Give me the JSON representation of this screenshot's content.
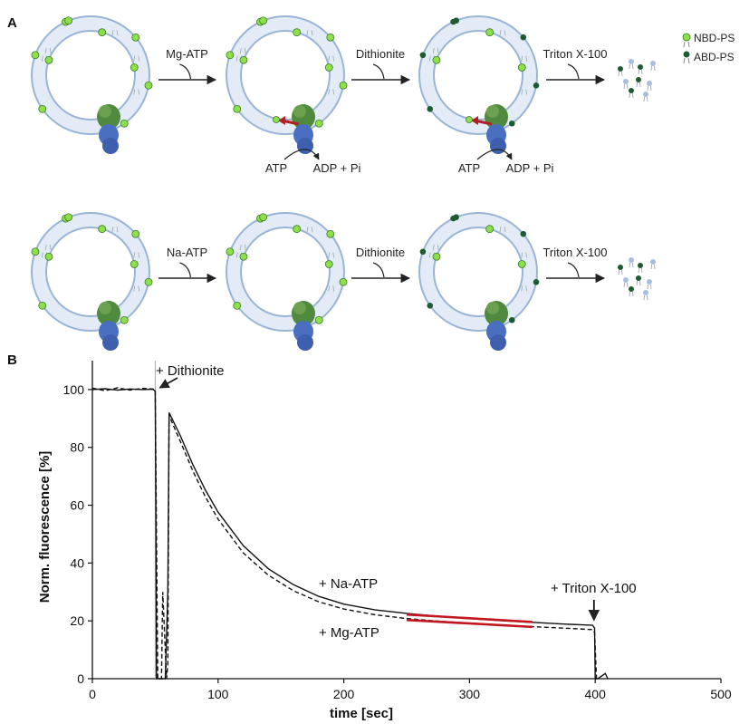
{
  "panel_a": {
    "label": "A",
    "row1": {
      "steps": [
        "Mg-ATP",
        "Dithionite",
        "Triton X-100"
      ]
    },
    "row2": {
      "steps": [
        "Na-ATP",
        "Dithionite",
        "Triton X-100"
      ]
    },
    "atp_text": "ATP",
    "adp_text": "ADP + Pi",
    "legend": [
      {
        "label": "NBD-PS",
        "color": "#8ee04a"
      },
      {
        "label": "ABD-PS",
        "color": "#1e5a32"
      }
    ],
    "colors": {
      "membrane": "#9ab4d6",
      "membrane_fill": "#e3ecf6",
      "protein_tm": "#4f8a3e",
      "protein_cyto": "#4a6fc0",
      "flip_arrow": "#b0202a"
    }
  },
  "panel_b": {
    "label": "B"
  },
  "chart_data": {
    "type": "line",
    "xlabel": "time [sec]",
    "ylabel": "Norm. fluorescence [%]",
    "xlim": [
      0,
      500
    ],
    "ylim": [
      0,
      110
    ],
    "xticks": [
      0,
      100,
      200,
      300,
      400,
      500
    ],
    "yticks": [
      0,
      20,
      40,
      60,
      80,
      100
    ],
    "grid": false,
    "series": [
      {
        "name": "+ Na-ATP",
        "style": "solid",
        "color": "#111111",
        "x": [
          0,
          10,
          20,
          30,
          40,
          48,
          50,
          50.5,
          51,
          52,
          58,
          60,
          61,
          70,
          80,
          90,
          100,
          120,
          140,
          160,
          180,
          200,
          225,
          250,
          275,
          300,
          325,
          350,
          375,
          398,
          399.5,
          400,
          402,
          408,
          410
        ],
        "y": [
          100,
          100.3,
          99.8,
          100.2,
          100,
          100.1,
          99.5,
          60,
          0,
          0,
          0,
          30,
          92,
          84,
          74,
          65.2,
          57.6,
          46,
          38,
          32.5,
          28.5,
          25.8,
          23.8,
          22.6,
          21.6,
          20.8,
          20.1,
          19.5,
          18.9,
          18.5,
          17.5,
          0,
          0,
          1.8,
          0
        ]
      },
      {
        "name": "+ Mg-ATP",
        "style": "dashed",
        "color": "#111111",
        "x": [
          0,
          10,
          20,
          30,
          40,
          48,
          50,
          52,
          55,
          56,
          58,
          59,
          60,
          61,
          70,
          80,
          90,
          100,
          120,
          140,
          160,
          180,
          200,
          225,
          250,
          275,
          300,
          325,
          350,
          375,
          398,
          399.5,
          401
        ],
        "y": [
          100.5,
          99.6,
          100.6,
          99.8,
          100.4,
          100.2,
          100,
          0,
          0,
          30,
          10,
          0,
          5,
          91,
          82,
          71.8,
          62.8,
          55.2,
          43.5,
          35.8,
          30.4,
          26.6,
          24.1,
          22.1,
          20.8,
          19.9,
          19.2,
          18.6,
          18,
          17.5,
          17,
          16,
          0
        ]
      }
    ],
    "fit_lines": {
      "color": "#c0181e",
      "lines": [
        {
          "x": [
            250,
            350
          ],
          "y": [
            22.2,
            19.6
          ]
        },
        {
          "x": [
            250,
            350
          ],
          "y": [
            20.3,
            17.9
          ]
        }
      ]
    },
    "annotations": {
      "dithionite": {
        "text": "+ Dithionite",
        "x": 50
      },
      "triton": {
        "text": "+ Triton X-100",
        "x": 399
      },
      "na_atp": {
        "text": "+ Na-ATP"
      },
      "mg_atp": {
        "text": "+ Mg-ATP"
      }
    }
  }
}
